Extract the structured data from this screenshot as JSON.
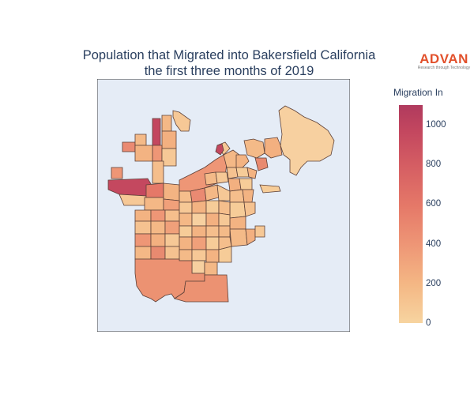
{
  "title": {
    "line1": "Population that Migrated into Bakersfield California",
    "line2": "the first three months of 2019"
  },
  "logo": {
    "brand": "ADVAN",
    "tagline": "Research through Technology"
  },
  "colorbar": {
    "title": "Migration In",
    "ticks": [
      "0",
      "200",
      "400",
      "600",
      "800",
      "1000"
    ],
    "range": [
      0,
      1100
    ],
    "colors": [
      "#f7d4a0",
      "#f4b784",
      "#ee9676",
      "#e57868",
      "#d55e63",
      "#c3475f",
      "#b03a5e"
    ]
  },
  "map": {
    "background": "#e5ecf6",
    "border_color": "#444444",
    "region_stroke": "#5c4038"
  }
}
